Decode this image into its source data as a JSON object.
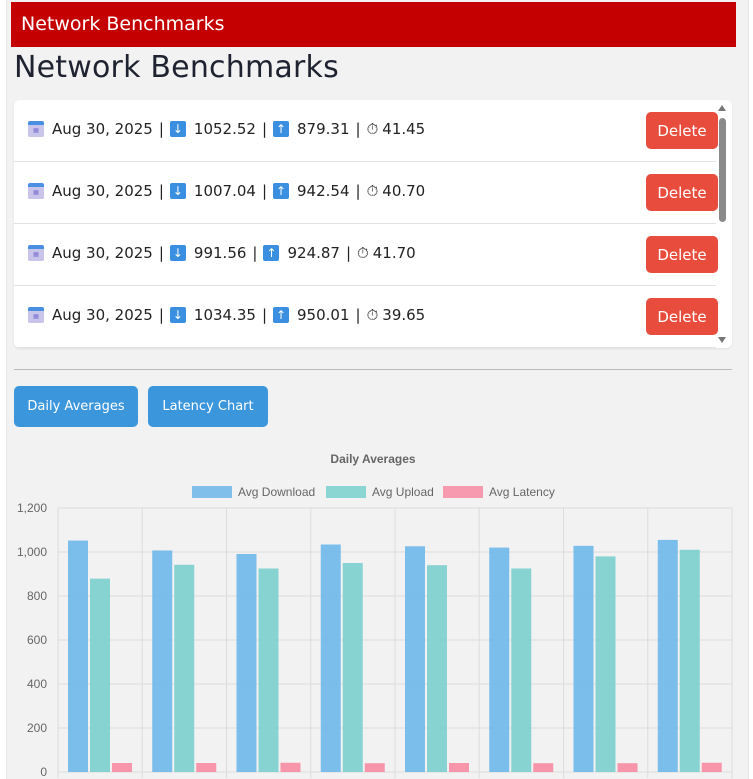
{
  "app": {
    "titlebar": "Network Benchmarks"
  },
  "page": {
    "title": "Network Benchmarks"
  },
  "benchmarks": [
    {
      "date": "Aug 30, 2025",
      "download": "1052.52",
      "upload": "879.31",
      "latency": "41.45",
      "delete_label": "Delete"
    },
    {
      "date": "Aug 30, 2025",
      "download": "1007.04",
      "upload": "942.54",
      "latency": "40.70",
      "delete_label": "Delete"
    },
    {
      "date": "Aug 30, 2025",
      "download": "991.56",
      "upload": "924.87",
      "latency": "41.70",
      "delete_label": "Delete"
    },
    {
      "date": "Aug 30, 2025",
      "download": "1034.35",
      "upload": "950.01",
      "latency": "39.65",
      "delete_label": "Delete"
    }
  ],
  "icons": {
    "date": "calendar-icon",
    "download": "down-arrow-icon",
    "upload": "up-arrow-icon",
    "latency": "stopwatch-icon"
  },
  "buttons": {
    "daily_averages": "Daily Averages",
    "latency_chart": "Latency Chart"
  },
  "colors": {
    "titlebar": "#c40000",
    "delete": "#e84c3d",
    "tab_button": "#3c96dc",
    "download": "#74b9ea",
    "upload": "#7fd1cf",
    "latency": "#f78fa7"
  },
  "chart_data": {
    "type": "bar",
    "title": "Daily Averages",
    "categories": [
      "",
      "",
      "",
      "",
      "",
      "",
      "",
      ""
    ],
    "series": [
      {
        "name": "Avg Download",
        "color": "#74b9ea",
        "values": [
          1052,
          1007,
          991,
          1034,
          1026,
          1020,
          1028,
          1055
        ]
      },
      {
        "name": "Avg Upload",
        "color": "#7fd1cf",
        "values": [
          879,
          942,
          925,
          950,
          940,
          925,
          980,
          1010
        ]
      },
      {
        "name": "Avg Latency",
        "color": "#f78fa7",
        "values": [
          41,
          41,
          42,
          40,
          41,
          40,
          40,
          42
        ]
      }
    ],
    "y_ticks": [
      "0",
      "200",
      "400",
      "600",
      "800",
      "1,000",
      "1,200"
    ],
    "ylim": [
      0,
      1200
    ],
    "grid": true,
    "legend": "top"
  }
}
